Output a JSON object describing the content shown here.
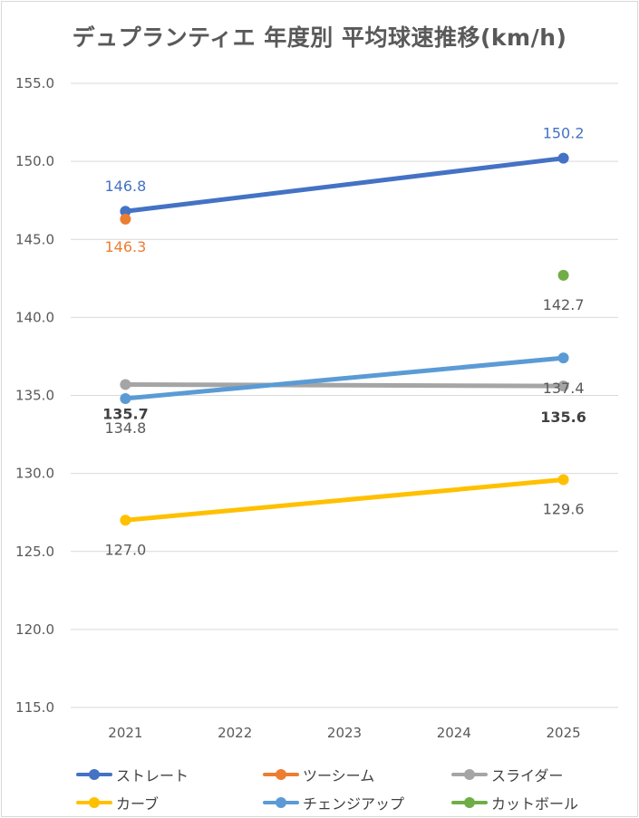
{
  "chart_data": {
    "type": "line",
    "title": "デュプランティエ 年度別 平均球速推移(km/h)",
    "categories": [
      "2021",
      "2022",
      "2023",
      "2024",
      "2025"
    ],
    "ylim": [
      115.0,
      155.0
    ],
    "yticks": [
      "155.0",
      "150.0",
      "145.0",
      "140.0",
      "135.0",
      "130.0",
      "125.0",
      "120.0",
      "115.0"
    ],
    "grid": true,
    "legend_position": "bottom",
    "series": [
      {
        "name": "ストレート",
        "color": "#4472C4",
        "values": [
          146.8,
          null,
          null,
          null,
          150.2
        ],
        "labels": [
          "146.8",
          "",
          "",
          "",
          "150.2"
        ]
      },
      {
        "name": "ツーシーム",
        "color": "#ED7D31",
        "values": [
          146.3,
          null,
          null,
          null,
          null
        ],
        "labels": [
          "146.3",
          "",
          "",
          "",
          ""
        ]
      },
      {
        "name": "スライダー",
        "color": "#A5A5A5",
        "values": [
          135.7,
          null,
          null,
          null,
          135.6
        ],
        "labels": [
          "135.7",
          "",
          "",
          "",
          "135.6"
        ]
      },
      {
        "name": "カーブ",
        "color": "#FFC000",
        "values": [
          127.0,
          null,
          null,
          null,
          129.6
        ],
        "labels": [
          "127.0",
          "",
          "",
          "",
          "129.6"
        ]
      },
      {
        "name": "チェンジアップ",
        "color": "#5B9BD5",
        "values": [
          134.8,
          null,
          null,
          null,
          137.4
        ],
        "labels": [
          "134.8",
          "",
          "",
          "",
          "137.4"
        ]
      },
      {
        "name": "カットボール",
        "color": "#70AD47",
        "values": [
          null,
          null,
          null,
          null,
          142.7
        ],
        "labels": [
          "",
          "",
          "",
          "",
          "142.7"
        ]
      }
    ]
  }
}
